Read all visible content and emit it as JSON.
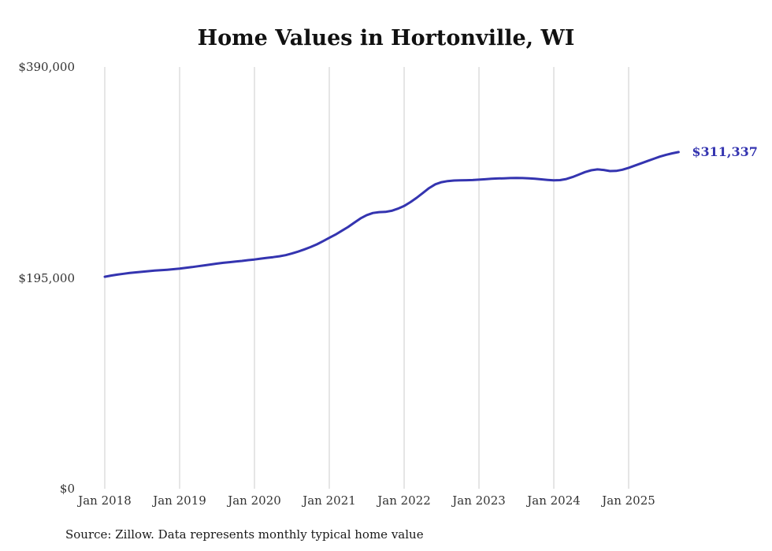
{
  "title": "Home Values in Hortonville, WI",
  "source_note": "Source: Zillow. Data represents monthly typical home value",
  "colors": {
    "line": "#3434b0",
    "annotation": "#3434b0",
    "gridline": "#cccccc",
    "tick_text": "#333333"
  },
  "chart_data": {
    "type": "line",
    "title": "Home Values in Hortonville, WI",
    "ylabel": "",
    "xlabel": "",
    "ylim": [
      0,
      390000
    ],
    "grid": "vertical-only",
    "legend_position": "none",
    "y_ticks": [
      {
        "label": "$390,000",
        "value": 390000
      },
      {
        "label": "$195,000",
        "value": 195000
      },
      {
        "label": "$0",
        "value": 0
      }
    ],
    "x_ticks": [
      {
        "label": "Jan 2018",
        "month_index": 0
      },
      {
        "label": "Jan 2019",
        "month_index": 12
      },
      {
        "label": "Jan 2020",
        "month_index": 24
      },
      {
        "label": "Jan 2021",
        "month_index": 36
      },
      {
        "label": "Jan 2022",
        "month_index": 48
      },
      {
        "label": "Jan 2023",
        "month_index": 60
      },
      {
        "label": "Jan 2024",
        "month_index": 72
      },
      {
        "label": "Jan 2025",
        "month_index": 84
      }
    ],
    "end_label": "$311,337",
    "end_value": 311337,
    "series": [
      {
        "name": "Monthly typical home value",
        "start": "Jan 2018",
        "interval": "monthly",
        "values": [
          196000,
          197100,
          198000,
          198800,
          199500,
          200100,
          200700,
          201200,
          201700,
          202100,
          202500,
          203000,
          203600,
          204300,
          205000,
          205800,
          206600,
          207400,
          208200,
          208900,
          209500,
          210100,
          210700,
          211400,
          212000,
          212800,
          213500,
          214200,
          215000,
          216000,
          217500,
          219300,
          221300,
          223500,
          226000,
          229000,
          232000,
          235000,
          238500,
          242000,
          246000,
          250000,
          253000,
          255000,
          255800,
          256000,
          257000,
          259000,
          261500,
          265000,
          269000,
          273500,
          278000,
          281500,
          283500,
          284500,
          285000,
          285200,
          285300,
          285500,
          285800,
          286200,
          286600,
          286900,
          287100,
          287300,
          287400,
          287300,
          287000,
          286600,
          286100,
          285600,
          285200,
          285400,
          286400,
          288200,
          290500,
          292800,
          294500,
          295300,
          294800,
          293800,
          293900,
          295000,
          296800,
          298800,
          300900,
          303000,
          305100,
          307100,
          308800,
          310200,
          311337
        ]
      }
    ]
  }
}
